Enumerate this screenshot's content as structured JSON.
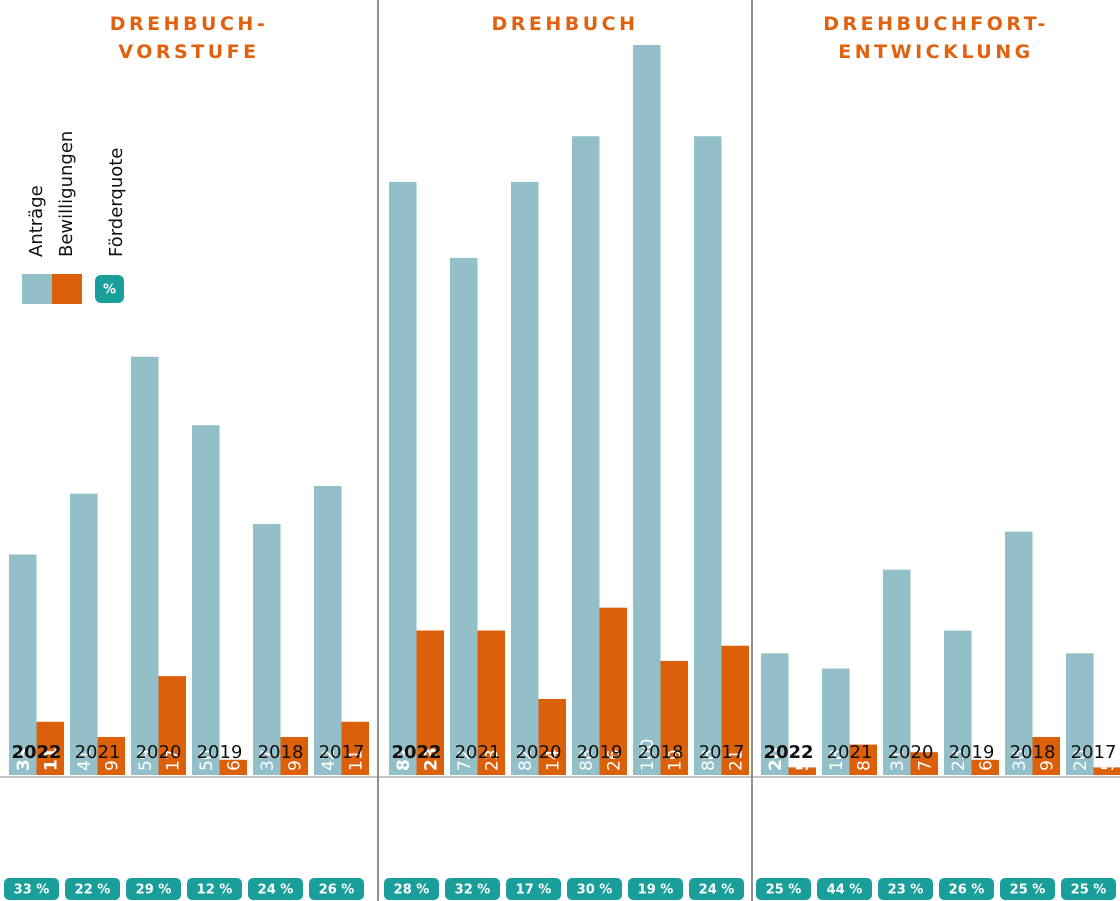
{
  "chart_data": [
    {
      "type": "bar",
      "title_lines": [
        "DREHBUCH-",
        "VORSTUFE"
      ],
      "categories": [
        "2022",
        "2021",
        "2020",
        "2019",
        "2018",
        "2017"
      ],
      "ylim": [
        4,
        100
      ],
      "series": [
        {
          "name": "Anträge",
          "color": "#92bfc8",
          "values": [
            33,
            41,
            59,
            50,
            37,
            42
          ]
        },
        {
          "name": "Bewilligungen",
          "color": "#dc5f0a",
          "values": [
            11,
            9,
            17,
            6,
            9,
            11
          ]
        },
        {
          "name": "Förderquote",
          "color": "#1a9e9a",
          "values": [
            33,
            22,
            29,
            12,
            24,
            26
          ],
          "value_labels": [
            "33 %",
            "22 %",
            "29 %",
            "12 %",
            "24 %",
            "26 %"
          ]
        }
      ]
    },
    {
      "type": "bar",
      "title_lines": [
        "DREHBUCH"
      ],
      "categories": [
        "2022",
        "2021",
        "2020",
        "2019",
        "2018",
        "2017"
      ],
      "ylim": [
        4,
        100
      ],
      "series": [
        {
          "name": "Anträge",
          "color": "#92bfc8",
          "values": [
            82,
            72,
            82,
            88,
            100,
            88
          ]
        },
        {
          "name": "Bewilligungen",
          "color": "#dc5f0a",
          "values": [
            23,
            23,
            14,
            26,
            19,
            21
          ]
        },
        {
          "name": "Förderquote",
          "color": "#1a9e9a",
          "values": [
            28,
            32,
            17,
            30,
            19,
            24
          ],
          "value_labels": [
            "28 %",
            "32 %",
            "17 %",
            "30 %",
            "19 %",
            "24 %"
          ]
        }
      ]
    },
    {
      "type": "bar",
      "title_lines": [
        "DREHBUCHFORT-",
        "ENTWICKLUNG"
      ],
      "categories": [
        "2022",
        "2021",
        "2020",
        "2019",
        "2018",
        "2017"
      ],
      "ylim": [
        4,
        100
      ],
      "series": [
        {
          "name": "Anträge",
          "color": "#92bfc8",
          "values": [
            20,
            18,
            31,
            23,
            36,
            20
          ]
        },
        {
          "name": "Bewilligungen",
          "color": "#dc5f0a",
          "values": [
            5,
            8,
            7,
            6,
            9,
            5
          ]
        },
        {
          "name": "Förderquote",
          "color": "#1a9e9a",
          "values": [
            25,
            44,
            23,
            26,
            25,
            25
          ],
          "value_labels": [
            "25 %",
            "44 %",
            "23 %",
            "26 %",
            "25 %",
            "25 %"
          ]
        }
      ]
    }
  ],
  "legend": {
    "symbol": "%"
  }
}
